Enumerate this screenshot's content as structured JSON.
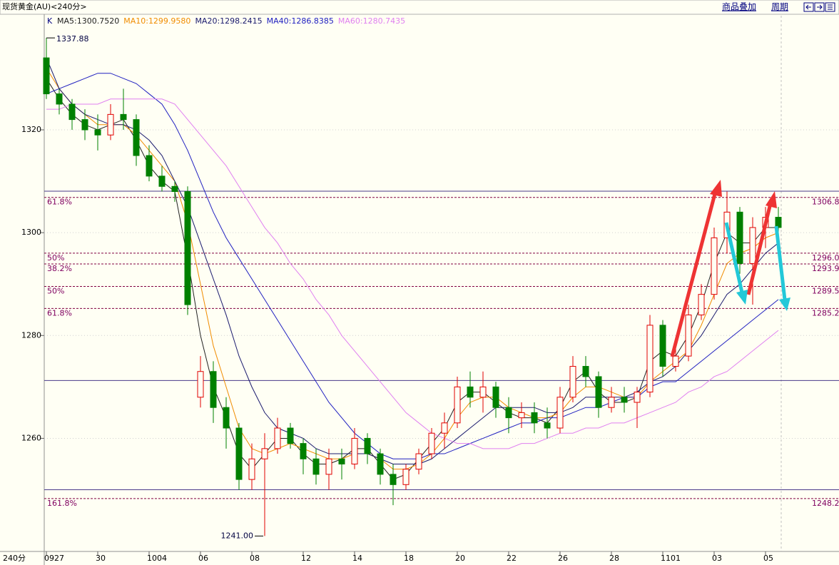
{
  "toolbar": {
    "buttons": [
      "商品叠加",
      "周期"
    ]
  },
  "chart_data": {
    "type": "candlestick",
    "title": "现货黄金(AU)<240分>",
    "legend_title": "K",
    "period_label": "240分",
    "ylim": [
      1238,
      1342.2
    ],
    "yticks": [
      1260,
      1280,
      1300,
      1320
    ],
    "grid": true,
    "up_color": "#e00000",
    "down_color": "#008000",
    "high_label": "1337.88",
    "low_label": "1241.00",
    "categories": [
      "0927",
      null,
      null,
      null,
      "30",
      null,
      null,
      null,
      "1004",
      null,
      null,
      null,
      "06",
      null,
      null,
      null,
      "08",
      null,
      null,
      null,
      "12",
      null,
      null,
      null,
      "14",
      null,
      null,
      null,
      "18",
      null,
      null,
      null,
      "20",
      null,
      null,
      null,
      "22",
      null,
      null,
      null,
      "26",
      null,
      null,
      null,
      "28",
      null,
      null,
      null,
      "1101",
      null,
      null,
      null,
      "03",
      null,
      null,
      null,
      "05",
      null
    ],
    "open": [
      1334,
      1327,
      1325,
      1322,
      1320,
      1319,
      1323,
      1322,
      1315,
      1311,
      1309,
      1308,
      1268,
      1273,
      1266,
      1262,
      1252,
      1256,
      1258,
      1262,
      1259,
      1256,
      1253,
      1256,
      1255,
      1260,
      1257,
      1253,
      1251,
      1254,
      1257,
      1261,
      1263,
      1270,
      1268,
      1270,
      1266,
      1264,
      1265,
      1263,
      1262,
      1268,
      1274,
      1272,
      1266,
      1268,
      1267,
      1269,
      1282,
      1274,
      1276,
      1284,
      1288,
      1299,
      1304,
      1294,
      1301,
      1303
    ],
    "high": [
      1337.88,
      1328,
      1326,
      1324,
      1323,
      1325,
      1328,
      1323,
      1317,
      1313,
      1310,
      1309,
      1276,
      1275,
      1268,
      1263,
      1259,
      1261,
      1264,
      1263,
      1260,
      1258,
      1258,
      1258,
      1262,
      1261,
      1258,
      1255,
      1255,
      1258,
      1262,
      1265,
      1272,
      1273,
      1273,
      1271,
      1268,
      1267,
      1267,
      1266,
      1270,
      1276,
      1276,
      1273,
      1270,
      1270,
      1270,
      1284,
      1283,
      1278,
      1286,
      1290,
      1301,
      1308,
      1305,
      1303,
      1305,
      1305
    ],
    "low": [
      1326,
      1323,
      1320,
      1318,
      1316,
      1318,
      1320,
      1313,
      1310,
      1308,
      1306,
      1284,
      1266,
      1263,
      1258,
      1250,
      1250,
      1241,
      1257,
      1258,
      1253,
      1251,
      1250,
      1252,
      1254,
      1255,
      1251,
      1247,
      1250,
      1253,
      1256,
      1258,
      1262,
      1266,
      1265,
      1264,
      1261,
      1262,
      1261,
      1260,
      1261,
      1267,
      1270,
      1264,
      1265,
      1265,
      1262,
      1268,
      1272,
      1273,
      1275,
      1283,
      1287,
      1296,
      1292,
      1286,
      1297,
      1300
    ],
    "close": [
      1327,
      1325,
      1322,
      1320,
      1319,
      1323,
      1322,
      1315,
      1311,
      1309,
      1308,
      1286,
      1273,
      1266,
      1262,
      1252,
      1256,
      1258,
      1262,
      1259,
      1256,
      1253,
      1256,
      1255,
      1260,
      1257,
      1253,
      1251,
      1254,
      1257,
      1261,
      1263,
      1270,
      1268,
      1270,
      1266,
      1264,
      1265,
      1263,
      1262,
      1268,
      1274,
      1272,
      1266,
      1268,
      1267,
      1269,
      1282,
      1274,
      1276,
      1284,
      1288,
      1299,
      1304,
      1294,
      1301,
      1303,
      1301
    ],
    "series": [
      {
        "name": "MA5:1300.7520",
        "color": "#222222",
        "values": [
          1330,
          1326,
          1323,
          1321,
          1320,
          1321,
          1322,
          1318,
          1313,
          1310,
          1308,
          1295,
          1280,
          1270,
          1264,
          1257,
          1254,
          1257,
          1260,
          1260,
          1257,
          1255,
          1255,
          1256,
          1258,
          1258,
          1255,
          1252,
          1253,
          1256,
          1259,
          1262,
          1267,
          1269,
          1269,
          1267,
          1265,
          1264,
          1264,
          1263,
          1266,
          1271,
          1273,
          1269,
          1267,
          1267,
          1268,
          1275,
          1277,
          1276,
          1280,
          1286,
          1294,
          1300,
          1298,
          1298,
          1301,
          1301
        ]
      },
      {
        "name": "MA10:1299.9580",
        "color": "#f08c00",
        "values": [
          1332,
          1328,
          1325,
          1323,
          1321,
          1321,
          1321,
          1319,
          1316,
          1313,
          1310,
          1302,
          1290,
          1278,
          1270,
          1262,
          1258,
          1257,
          1258,
          1259,
          1258,
          1257,
          1256,
          1256,
          1257,
          1257,
          1256,
          1254,
          1254,
          1255,
          1257,
          1260,
          1264,
          1267,
          1268,
          1268,
          1266,
          1265,
          1264,
          1264,
          1265,
          1268,
          1270,
          1270,
          1269,
          1268,
          1268,
          1271,
          1273,
          1275,
          1277,
          1282,
          1288,
          1294,
          1296,
          1297,
          1299,
          1300
        ]
      },
      {
        "name": "MA20:1298.2415",
        "color": "#1a1a6e",
        "values": [
          1334,
          1328,
          1325,
          1323,
          1322,
          1321,
          1321,
          1320,
          1318,
          1315,
          1310,
          1305,
          1298,
          1291,
          1284,
          1276,
          1270,
          1265,
          1262,
          1261,
          1260,
          1258,
          1257,
          1257,
          1257,
          1257,
          1256,
          1255,
          1255,
          1255,
          1256,
          1258,
          1260,
          1262,
          1264,
          1266,
          1266,
          1266,
          1266,
          1265,
          1265,
          1266,
          1268,
          1268,
          1268,
          1268,
          1269,
          1271,
          1272,
          1274,
          1277,
          1280,
          1284,
          1288,
          1290,
          1293,
          1296,
          1298
        ]
      },
      {
        "name": "MA40:1286.8385",
        "color": "#2020c0",
        "values": [
          1327,
          1328,
          1329,
          1330,
          1331,
          1331,
          1330,
          1329,
          1327,
          1325,
          1321,
          1316,
          1310,
          1304,
          1299,
          1295,
          1291,
          1287,
          1283,
          1279,
          1275,
          1271,
          1267,
          1264,
          1261,
          1259,
          1257,
          1256,
          1256,
          1256,
          1257,
          1257,
          1258,
          1259,
          1260,
          1261,
          1262,
          1263,
          1263,
          1264,
          1264,
          1265,
          1266,
          1266,
          1267,
          1268,
          1268,
          1270,
          1271,
          1271,
          1273,
          1275,
          1277,
          1279,
          1281,
          1283,
          1285,
          1287
        ]
      },
      {
        "name": "MA60:1280.7435",
        "color": "#e080f0",
        "values": [
          1324,
          1324,
          1325,
          1325,
          1325,
          1326,
          1326,
          1326,
          1326,
          1326,
          1325,
          1322,
          1319,
          1316,
          1313,
          1309,
          1305,
          1301,
          1298,
          1294,
          1291,
          1287,
          1284,
          1280,
          1277,
          1274,
          1271,
          1268,
          1265,
          1263,
          1261,
          1260,
          1259,
          1259,
          1258,
          1258,
          1258,
          1259,
          1259,
          1260,
          1261,
          1261,
          1262,
          1262,
          1263,
          1263,
          1264,
          1265,
          1266,
          1267,
          1269,
          1270,
          1272,
          1273,
          1275,
          1277,
          1279,
          1281
        ]
      }
    ],
    "lines": [
      1308.06,
      1271.25,
      1250
    ],
    "fib_levels": [
      {
        "label": "61.8%",
        "value": 1306.86
      },
      {
        "label": "50%",
        "value": 1296.01
      },
      {
        "label": "38.2%",
        "value": 1293.91
      },
      {
        "label": "50%",
        "value": 1289.55
      },
      {
        "label": "61.8%",
        "value": 1285.26
      },
      {
        "label": "161.8%",
        "value": 1248.29
      }
    ]
  }
}
